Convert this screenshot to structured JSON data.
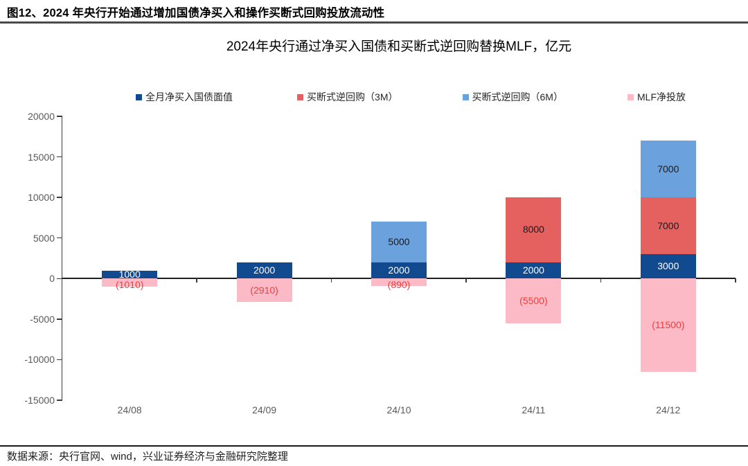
{
  "header": {
    "title": "图12、2024 年央行开始通过增加国债净买入和操作买断式回购投放流动性"
  },
  "footer": {
    "source_note": "数据来源：央行官网、wind，兴业证券经济与金融研究院整理"
  },
  "chart_data": {
    "type": "bar",
    "stacked": true,
    "title": "2024年央行通过净买入国债和买断式逆回购替换MLF，亿元",
    "categories": [
      "24/08",
      "24/09",
      "24/10",
      "24/11",
      "24/12"
    ],
    "series": [
      {
        "name": "全月净买入国债面值",
        "color": "#124A90",
        "label_color": "#FFFFFF",
        "values": [
          1000,
          2000,
          2000,
          2000,
          3000
        ]
      },
      {
        "name": "买断式逆回购（3M）",
        "color": "#E56160",
        "label_color": "#1A1A1A",
        "values": [
          0,
          0,
          0,
          8000,
          7000
        ]
      },
      {
        "name": "买断式逆回购（6M）",
        "color": "#6BA1DC",
        "label_color": "#1A1A1A",
        "values": [
          0,
          0,
          5000,
          0,
          7000
        ]
      },
      {
        "name": "MLF净投放",
        "color": "#FBBAC5",
        "label_color": "#F53C3C",
        "values": [
          -1010,
          -2910,
          -890,
          -5500,
          -11500
        ]
      }
    ],
    "ylim": [
      -15000,
      20000
    ],
    "yticks": [
      20000,
      15000,
      10000,
      5000,
      0,
      -5000,
      -10000,
      -15000
    ],
    "grid": false,
    "legend_position": "top",
    "negative_label_format": "parentheses"
  }
}
